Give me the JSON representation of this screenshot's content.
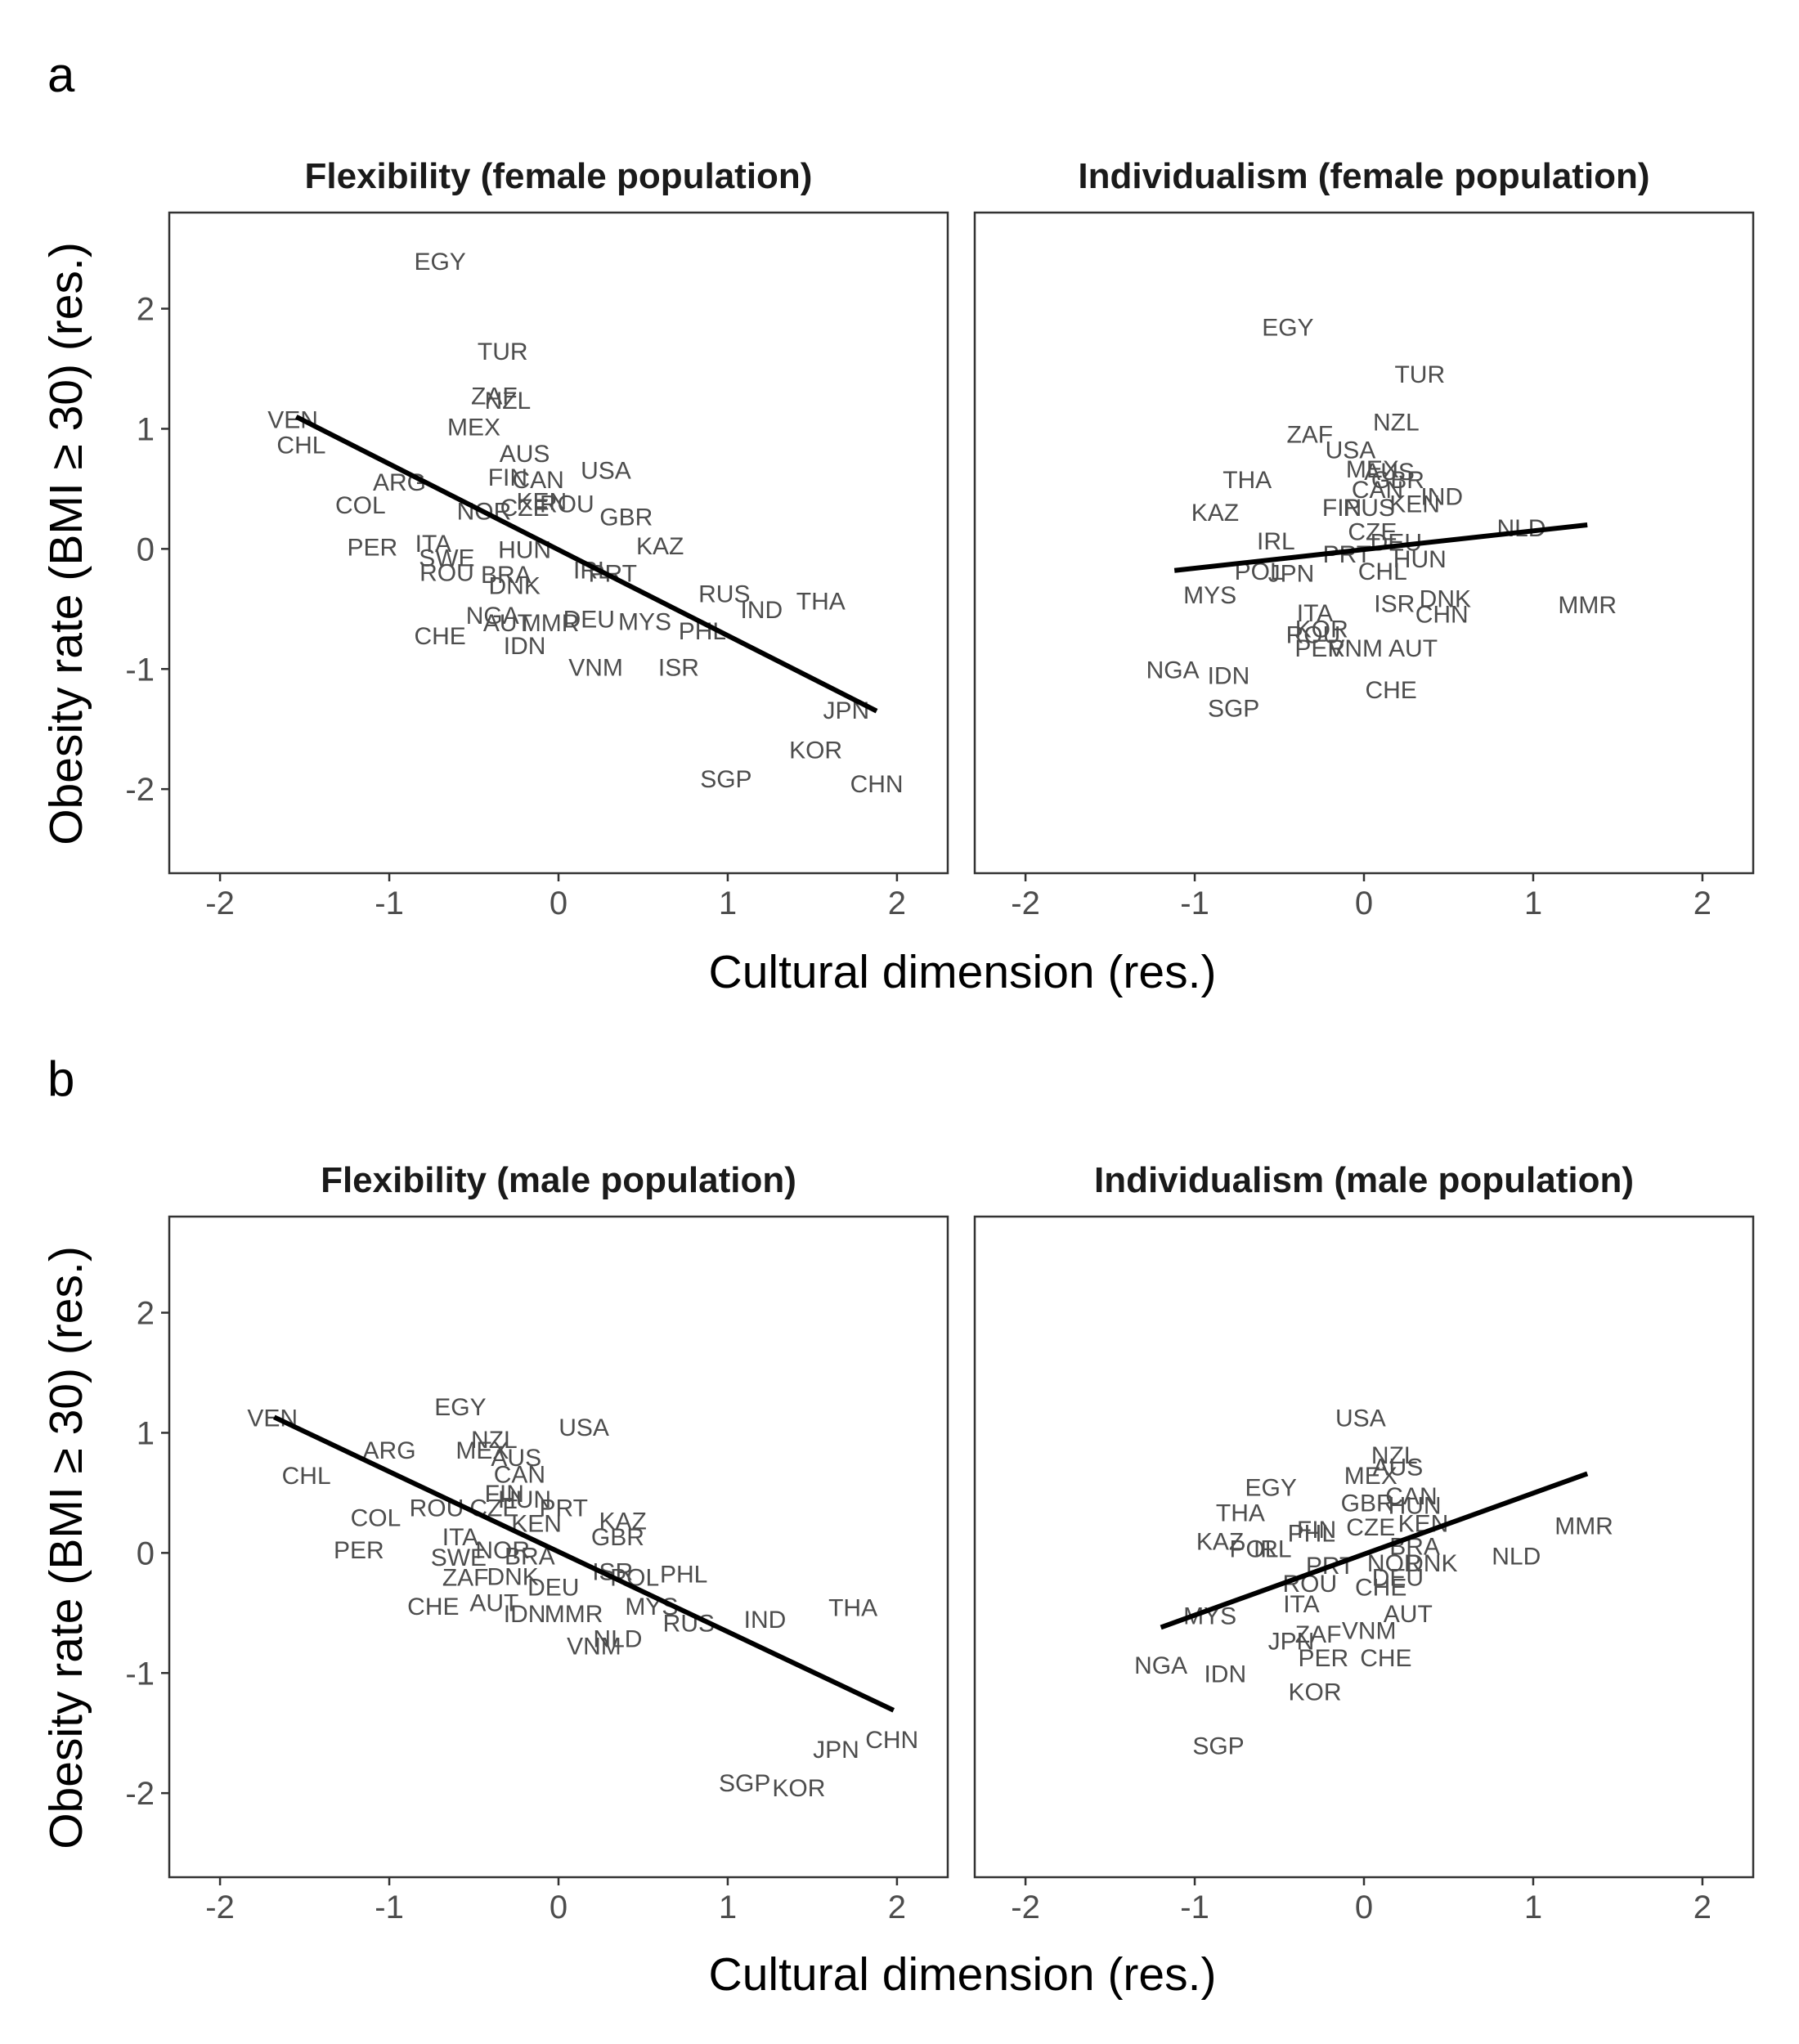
{
  "panel_labels": [
    "a",
    "b"
  ],
  "xlabel": "Cultural dimension (res.)",
  "ylabel": "Obesity rate (BMI ≥ 30) (res.)",
  "colors": {
    "line": "#000000",
    "text": "#4d4d4d",
    "frame": "#333333"
  },
  "chart_data": [
    {
      "type": "scatter",
      "title": "Flexibility (female population)",
      "xlim": [
        -2.3,
        2.3
      ],
      "ylim": [
        -2.7,
        2.8
      ],
      "xticks": [
        -2,
        -1,
        0,
        1,
        2
      ],
      "yticks": [
        -2,
        -1,
        0,
        1,
        2
      ],
      "fit_line": [
        [
          -1.55,
          1.1
        ],
        [
          1.88,
          -1.35
        ]
      ],
      "points": [
        {
          "label": "EGY",
          "x": -0.7,
          "y": 2.4
        },
        {
          "label": "TUR",
          "x": -0.33,
          "y": 1.65
        },
        {
          "label": "ZAF",
          "x": -0.38,
          "y": 1.28
        },
        {
          "label": "NZL",
          "x": -0.3,
          "y": 1.24
        },
        {
          "label": "MEX",
          "x": -0.5,
          "y": 1.02
        },
        {
          "label": "VEN",
          "x": -1.57,
          "y": 1.08
        },
        {
          "label": "CHL",
          "x": -1.52,
          "y": 0.87
        },
        {
          "label": "AUS",
          "x": -0.2,
          "y": 0.8
        },
        {
          "label": "USA",
          "x": 0.28,
          "y": 0.66
        },
        {
          "label": "ARG",
          "x": -0.94,
          "y": 0.56
        },
        {
          "label": "FIN",
          "x": -0.3,
          "y": 0.6
        },
        {
          "label": "CAN",
          "x": -0.12,
          "y": 0.58
        },
        {
          "label": "COL",
          "x": -1.17,
          "y": 0.37
        },
        {
          "label": "NOR",
          "x": -0.44,
          "y": 0.32
        },
        {
          "label": "CZE",
          "x": -0.2,
          "y": 0.35
        },
        {
          "label": "KEN",
          "x": -0.1,
          "y": 0.4
        },
        {
          "label": "ROU",
          "x": 0.05,
          "y": 0.38
        },
        {
          "label": "GBR",
          "x": 0.4,
          "y": 0.27
        },
        {
          "label": "KAZ",
          "x": 0.6,
          "y": 0.03
        },
        {
          "label": "PER",
          "x": -1.1,
          "y": 0.02
        },
        {
          "label": "ITA",
          "x": -0.74,
          "y": 0.05
        },
        {
          "label": "SWE",
          "x": -0.66,
          "y": -0.07
        },
        {
          "label": "HUN",
          "x": -0.2,
          "y": 0.0
        },
        {
          "label": "ROU",
          "x": -0.66,
          "y": -0.19
        },
        {
          "label": "BRA",
          "x": -0.31,
          "y": -0.21
        },
        {
          "label": "DNK",
          "x": -0.26,
          "y": -0.3
        },
        {
          "label": "IRL",
          "x": 0.2,
          "y": -0.17
        },
        {
          "label": "PRT",
          "x": 0.32,
          "y": -0.2
        },
        {
          "label": "RUS",
          "x": 0.98,
          "y": -0.37
        },
        {
          "label": "IND",
          "x": 1.2,
          "y": -0.5
        },
        {
          "label": "THA",
          "x": 1.55,
          "y": -0.43
        },
        {
          "label": "NGA",
          "x": -0.39,
          "y": -0.55
        },
        {
          "label": "AUT",
          "x": -0.3,
          "y": -0.61
        },
        {
          "label": "MMR",
          "x": -0.05,
          "y": -0.61
        },
        {
          "label": "DEU",
          "x": 0.18,
          "y": -0.58
        },
        {
          "label": "MYS",
          "x": 0.51,
          "y": -0.6
        },
        {
          "label": "PHL",
          "x": 0.85,
          "y": -0.68
        },
        {
          "label": "CHE",
          "x": -0.7,
          "y": -0.72
        },
        {
          "label": "IDN",
          "x": -0.2,
          "y": -0.8
        },
        {
          "label": "VNM",
          "x": 0.22,
          "y": -0.98
        },
        {
          "label": "ISR",
          "x": 0.71,
          "y": -0.98
        },
        {
          "label": "JPN",
          "x": 1.7,
          "y": -1.34
        },
        {
          "label": "KOR",
          "x": 1.52,
          "y": -1.67
        },
        {
          "label": "SGP",
          "x": 0.99,
          "y": -1.91
        },
        {
          "label": "CHN",
          "x": 1.88,
          "y": -1.95
        }
      ]
    },
    {
      "type": "scatter",
      "title": "Individualism (female population)",
      "xlim": [
        -2.3,
        2.3
      ],
      "ylim": [
        -2.7,
        2.8
      ],
      "xticks": [
        -2,
        -1,
        0,
        1,
        2
      ],
      "yticks": [
        -2,
        -1,
        0,
        1,
        2
      ],
      "fit_line": [
        [
          -1.12,
          -0.18
        ],
        [
          1.32,
          0.2
        ]
      ],
      "points": [
        {
          "label": "EGY",
          "x": -0.45,
          "y": 1.85
        },
        {
          "label": "TUR",
          "x": 0.33,
          "y": 1.46
        },
        {
          "label": "NZL",
          "x": 0.19,
          "y": 1.06
        },
        {
          "label": "ZAF",
          "x": -0.32,
          "y": 0.96
        },
        {
          "label": "USA",
          "x": -0.08,
          "y": 0.83
        },
        {
          "label": "MEX",
          "x": 0.05,
          "y": 0.67
        },
        {
          "label": "AUS",
          "x": 0.15,
          "y": 0.65
        },
        {
          "label": "CAN",
          "x": 0.08,
          "y": 0.5
        },
        {
          "label": "GBR",
          "x": 0.2,
          "y": 0.58
        },
        {
          "label": "THA",
          "x": -0.69,
          "y": 0.58
        },
        {
          "label": "IND",
          "x": 0.46,
          "y": 0.44
        },
        {
          "label": "KAZ",
          "x": -0.88,
          "y": 0.31
        },
        {
          "label": "FIN",
          "x": -0.13,
          "y": 0.35
        },
        {
          "label": "RUS",
          "x": 0.03,
          "y": 0.35
        },
        {
          "label": "KEN",
          "x": 0.3,
          "y": 0.38
        },
        {
          "label": "NLD",
          "x": 0.93,
          "y": 0.18
        },
        {
          "label": "CZE",
          "x": 0.05,
          "y": 0.15
        },
        {
          "label": "IRL",
          "x": -0.52,
          "y": 0.07
        },
        {
          "label": "PRT",
          "x": -0.1,
          "y": -0.04
        },
        {
          "label": "DEU",
          "x": 0.19,
          "y": 0.06
        },
        {
          "label": "HUN",
          "x": 0.33,
          "y": -0.08
        },
        {
          "label": "CHL",
          "x": 0.11,
          "y": -0.18
        },
        {
          "label": "POL",
          "x": -0.62,
          "y": -0.18
        },
        {
          "label": "JPN",
          "x": -0.43,
          "y": -0.2
        },
        {
          "label": "MYS",
          "x": -0.91,
          "y": -0.38
        },
        {
          "label": "DNK",
          "x": 0.48,
          "y": -0.41
        },
        {
          "label": "ISR",
          "x": 0.18,
          "y": -0.45
        },
        {
          "label": "CHN",
          "x": 0.46,
          "y": -0.54
        },
        {
          "label": "MMR",
          "x": 1.32,
          "y": -0.46
        },
        {
          "label": "ITA",
          "x": -0.29,
          "y": -0.53
        },
        {
          "label": "KOR",
          "x": -0.25,
          "y": -0.66
        },
        {
          "label": "ROU",
          "x": -0.3,
          "y": -0.71
        },
        {
          "label": "PER",
          "x": -0.26,
          "y": -0.82
        },
        {
          "label": "VNM",
          "x": -0.05,
          "y": -0.82
        },
        {
          "label": "AUT",
          "x": 0.29,
          "y": -0.82
        },
        {
          "label": "NGA",
          "x": -1.13,
          "y": -1.0
        },
        {
          "label": "IDN",
          "x": -0.8,
          "y": -1.05
        },
        {
          "label": "CHE",
          "x": 0.16,
          "y": -1.17
        },
        {
          "label": "SGP",
          "x": -0.77,
          "y": -1.32
        }
      ]
    },
    {
      "type": "scatter",
      "title": "Flexibility (male population)",
      "xlim": [
        -2.3,
        2.3
      ],
      "ylim": [
        -2.7,
        2.8
      ],
      "xticks": [
        -2,
        -1,
        0,
        1,
        2
      ],
      "yticks": [
        -2,
        -1,
        0,
        1,
        2
      ],
      "fit_line": [
        [
          -1.68,
          1.13
        ],
        [
          1.98,
          -1.31
        ]
      ],
      "points": [
        {
          "label": "EGY",
          "x": -0.58,
          "y": 1.22
        },
        {
          "label": "USA",
          "x": 0.15,
          "y": 1.05
        },
        {
          "label": "VEN",
          "x": -1.69,
          "y": 1.13
        },
        {
          "label": "NZL",
          "x": -0.38,
          "y": 0.95
        },
        {
          "label": "ARG",
          "x": -1.0,
          "y": 0.86
        },
        {
          "label": "MEX",
          "x": -0.45,
          "y": 0.86
        },
        {
          "label": "AUS",
          "x": -0.25,
          "y": 0.8
        },
        {
          "label": "CAN",
          "x": -0.23,
          "y": 0.66
        },
        {
          "label": "CHL",
          "x": -1.49,
          "y": 0.65
        },
        {
          "label": "FIN",
          "x": -0.32,
          "y": 0.5
        },
        {
          "label": "HUN",
          "x": -0.2,
          "y": 0.45
        },
        {
          "label": "COL",
          "x": -1.08,
          "y": 0.3
        },
        {
          "label": "ROU",
          "x": -0.72,
          "y": 0.38
        },
        {
          "label": "CZE",
          "x": -0.38,
          "y": 0.38
        },
        {
          "label": "KEN",
          "x": -0.13,
          "y": 0.25
        },
        {
          "label": "PRT",
          "x": 0.03,
          "y": 0.38
        },
        {
          "label": "KAZ",
          "x": 0.38,
          "y": 0.27
        },
        {
          "label": "GBR",
          "x": 0.35,
          "y": 0.14
        },
        {
          "label": "ITA",
          "x": -0.58,
          "y": 0.14
        },
        {
          "label": "PER",
          "x": -1.18,
          "y": 0.03
        },
        {
          "label": "SWE",
          "x": -0.59,
          "y": -0.03
        },
        {
          "label": "NOR",
          "x": -0.33,
          "y": 0.03
        },
        {
          "label": "BRA",
          "x": -0.17,
          "y": -0.02
        },
        {
          "label": "ZAF",
          "x": -0.55,
          "y": -0.2
        },
        {
          "label": "DNK",
          "x": -0.27,
          "y": -0.19
        },
        {
          "label": "ISR",
          "x": 0.32,
          "y": -0.15
        },
        {
          "label": "POL",
          "x": 0.45,
          "y": -0.2
        },
        {
          "label": "PHL",
          "x": 0.74,
          "y": -0.17
        },
        {
          "label": "DEU",
          "x": -0.03,
          "y": -0.28
        },
        {
          "label": "CHE",
          "x": -0.74,
          "y": -0.44
        },
        {
          "label": "AUT",
          "x": -0.38,
          "y": -0.41
        },
        {
          "label": "IDN",
          "x": -0.2,
          "y": -0.5
        },
        {
          "label": "MMR",
          "x": 0.09,
          "y": -0.5
        },
        {
          "label": "MYS",
          "x": 0.55,
          "y": -0.44
        },
        {
          "label": "RUS",
          "x": 0.77,
          "y": -0.58
        },
        {
          "label": "IND",
          "x": 1.22,
          "y": -0.55
        },
        {
          "label": "THA",
          "x": 1.74,
          "y": -0.45
        },
        {
          "label": "NLD",
          "x": 0.35,
          "y": -0.71
        },
        {
          "label": "VNM",
          "x": 0.21,
          "y": -0.77
        },
        {
          "label": "CHN",
          "x": 1.97,
          "y": -1.55
        },
        {
          "label": "JPN",
          "x": 1.64,
          "y": -1.63
        },
        {
          "label": "SGP",
          "x": 1.1,
          "y": -1.91
        },
        {
          "label": "KOR",
          "x": 1.42,
          "y": -1.95
        }
      ]
    },
    {
      "type": "scatter",
      "title": "Individualism (male population)",
      "xlim": [
        -2.3,
        2.3
      ],
      "ylim": [
        -2.7,
        2.8
      ],
      "xticks": [
        -2,
        -1,
        0,
        1,
        2
      ],
      "yticks": [
        -2,
        -1,
        0,
        1,
        2
      ],
      "fit_line": [
        [
          -1.2,
          -0.62
        ],
        [
          1.32,
          0.66
        ]
      ],
      "points": [
        {
          "label": "USA",
          "x": -0.02,
          "y": 1.13
        },
        {
          "label": "NZL",
          "x": 0.18,
          "y": 0.82
        },
        {
          "label": "AUS",
          "x": 0.2,
          "y": 0.72
        },
        {
          "label": "MEX",
          "x": 0.04,
          "y": 0.65
        },
        {
          "label": "EGY",
          "x": -0.55,
          "y": 0.55
        },
        {
          "label": "CAN",
          "x": 0.28,
          "y": 0.48
        },
        {
          "label": "GBR",
          "x": 0.02,
          "y": 0.42
        },
        {
          "label": "HUN",
          "x": 0.3,
          "y": 0.4
        },
        {
          "label": "THA",
          "x": -0.73,
          "y": 0.34
        },
        {
          "label": "MMR",
          "x": 1.3,
          "y": 0.23
        },
        {
          "label": "KEN",
          "x": 0.35,
          "y": 0.25
        },
        {
          "label": "FIN",
          "x": -0.28,
          "y": 0.2
        },
        {
          "label": "CZE",
          "x": 0.04,
          "y": 0.22
        },
        {
          "label": "PHL",
          "x": -0.31,
          "y": 0.17
        },
        {
          "label": "KAZ",
          "x": -0.85,
          "y": 0.1
        },
        {
          "label": "POL",
          "x": -0.65,
          "y": 0.04
        },
        {
          "label": "IRL",
          "x": -0.54,
          "y": 0.04
        },
        {
          "label": "BRA",
          "x": 0.3,
          "y": 0.06
        },
        {
          "label": "NLD",
          "x": 0.9,
          "y": -0.02
        },
        {
          "label": "PRT",
          "x": -0.2,
          "y": -0.1
        },
        {
          "label": "NOR",
          "x": 0.18,
          "y": -0.08
        },
        {
          "label": "DNK",
          "x": 0.4,
          "y": -0.08
        },
        {
          "label": "ROU",
          "x": -0.32,
          "y": -0.25
        },
        {
          "label": "DEU",
          "x": 0.2,
          "y": -0.2
        },
        {
          "label": "CHE",
          "x": 0.1,
          "y": -0.28
        },
        {
          "label": "ITA",
          "x": -0.37,
          "y": -0.42
        },
        {
          "label": "AUT",
          "x": 0.26,
          "y": -0.5
        },
        {
          "label": "MYS",
          "x": -0.91,
          "y": -0.52
        },
        {
          "label": "ZAF",
          "x": -0.27,
          "y": -0.67
        },
        {
          "label": "VNM",
          "x": 0.03,
          "y": -0.64
        },
        {
          "label": "JPN",
          "x": -0.43,
          "y": -0.73
        },
        {
          "label": "PER",
          "x": -0.24,
          "y": -0.87
        },
        {
          "label": "CHE",
          "x": 0.13,
          "y": -0.87
        },
        {
          "label": "NGA",
          "x": -1.2,
          "y": -0.93
        },
        {
          "label": "IDN",
          "x": -0.82,
          "y": -1.0
        },
        {
          "label": "KOR",
          "x": -0.29,
          "y": -1.15
        },
        {
          "label": "SGP",
          "x": -0.86,
          "y": -1.6
        }
      ]
    }
  ]
}
